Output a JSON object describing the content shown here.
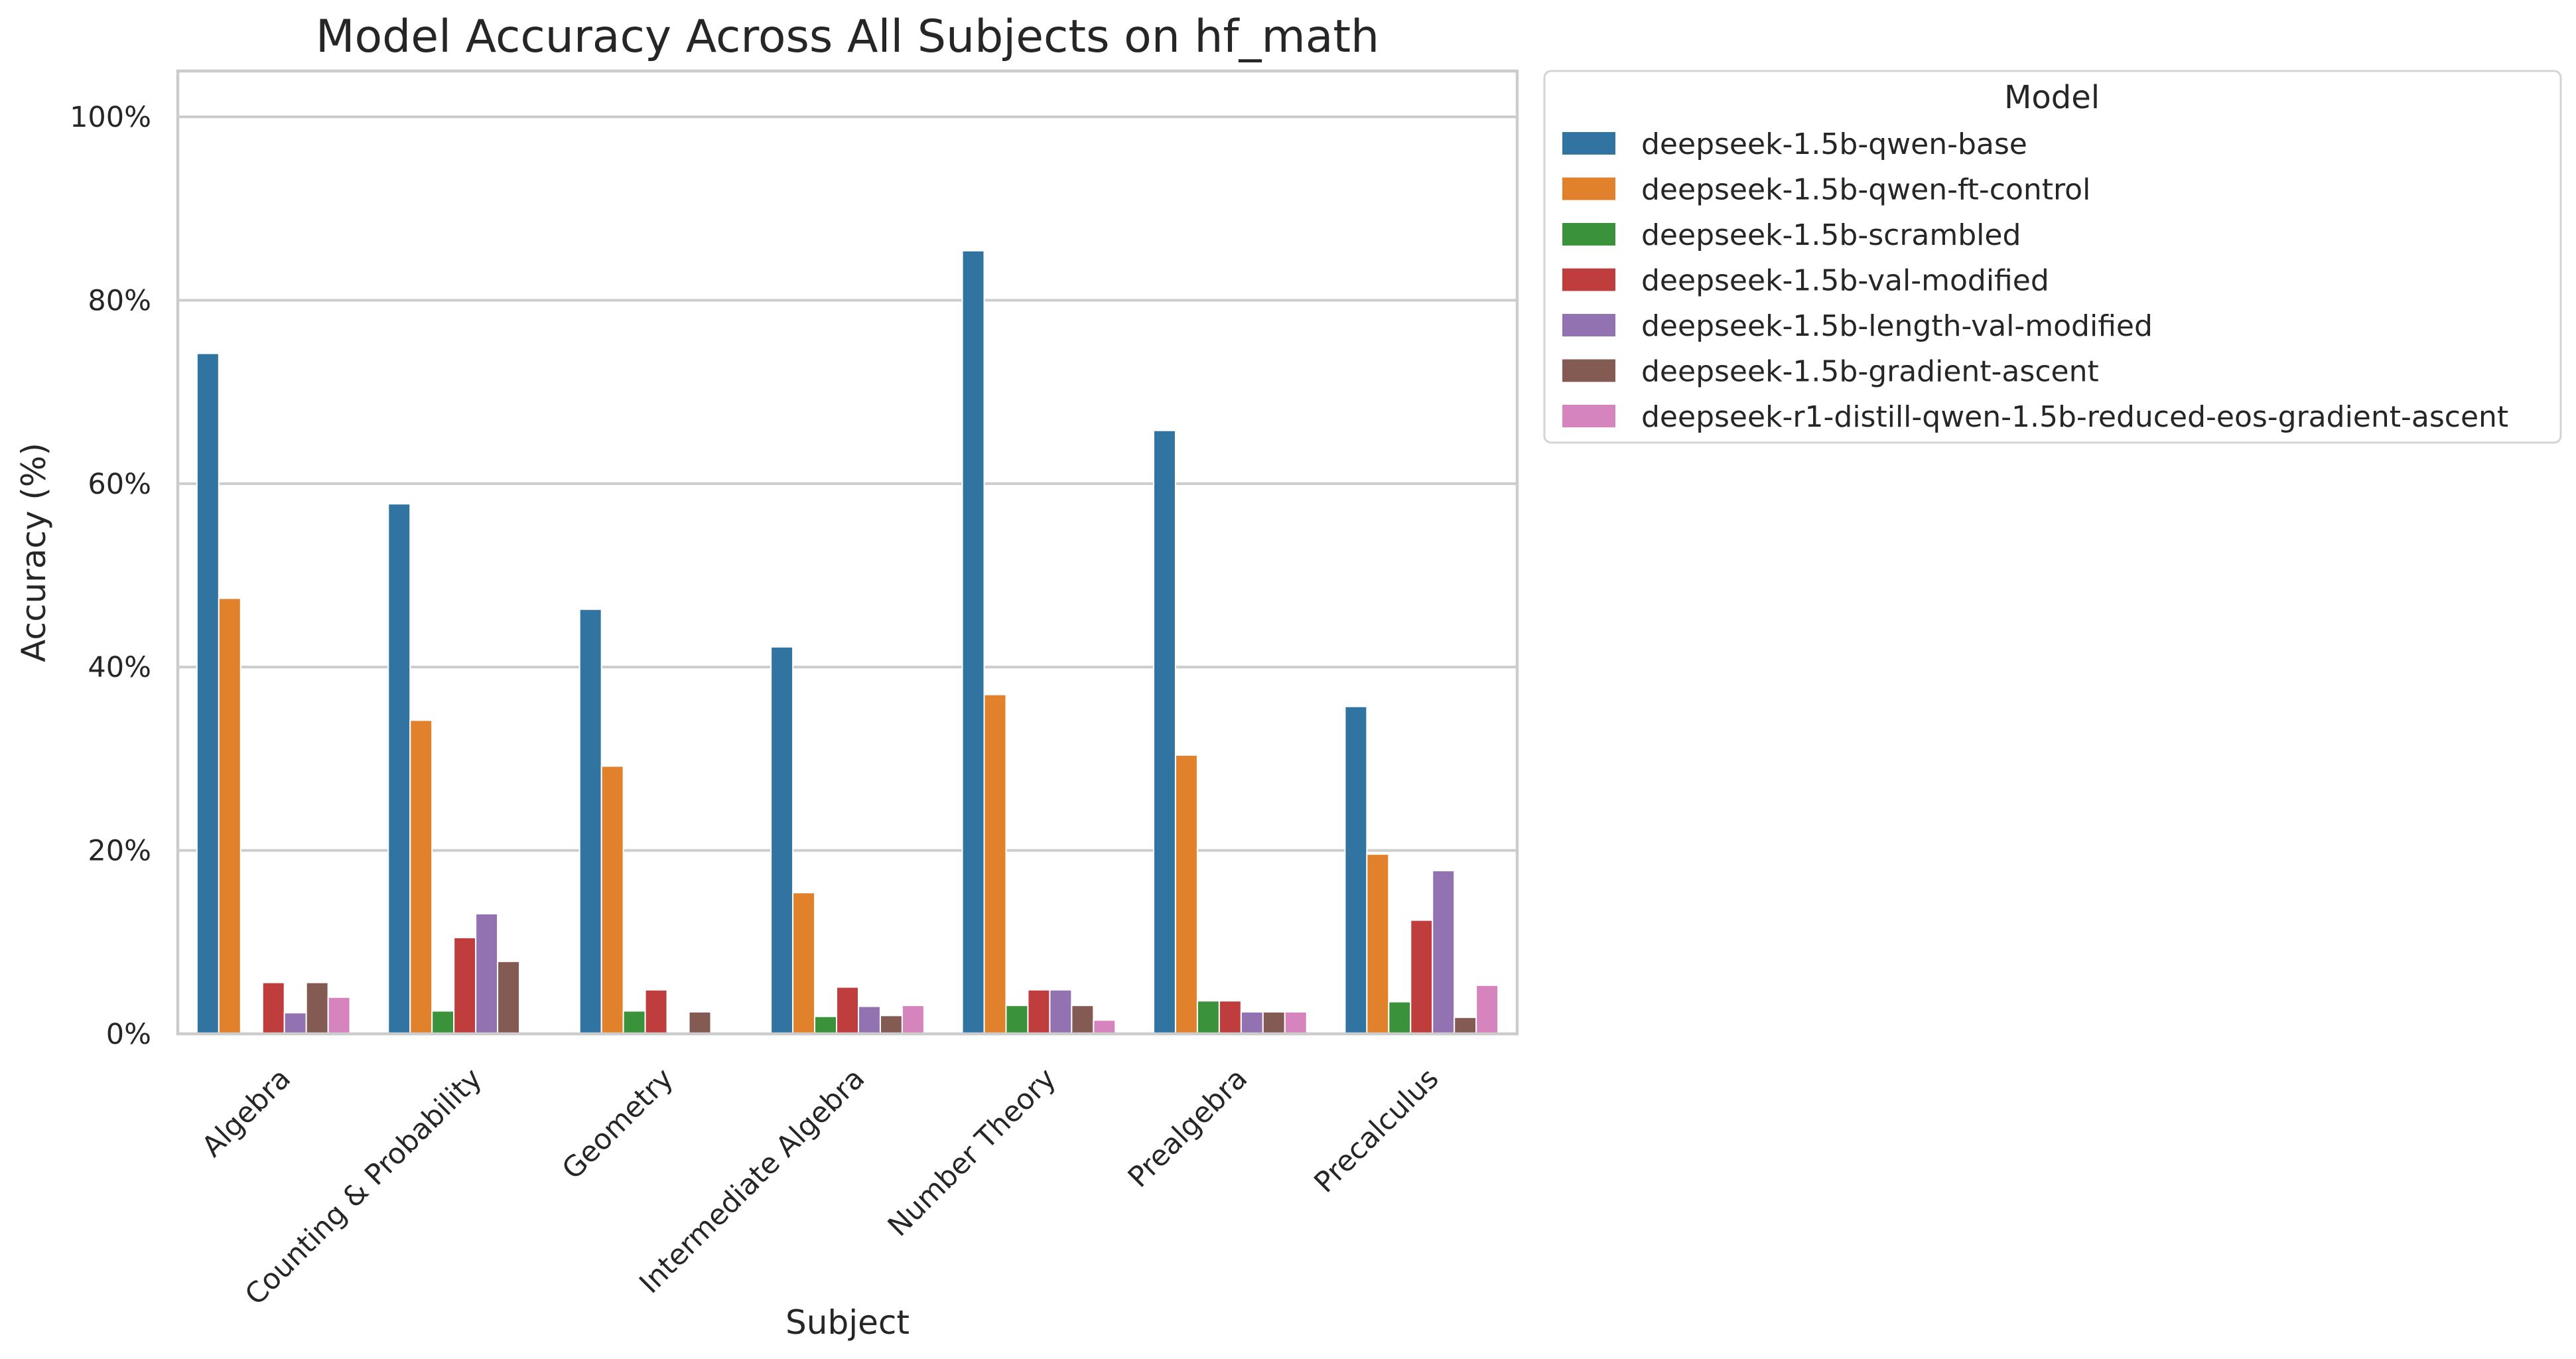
{
  "chart_data": {
    "type": "bar",
    "title": "Model Accuracy Across All Subjects on hf_math",
    "xlabel": "Subject",
    "ylabel": "Accuracy (%)",
    "ylim": [
      0,
      105
    ],
    "yticks": [
      0,
      20,
      40,
      60,
      80,
      100
    ],
    "ytick_labels": [
      "0%",
      "20%",
      "40%",
      "60%",
      "80%",
      "100%"
    ],
    "grid": true,
    "legend": {
      "title": "Model",
      "placement": "outside-upper-right"
    },
    "categories": [
      "Algebra",
      "Counting & Probability",
      "Geometry",
      "Intermediate Algebra",
      "Number Theory",
      "Prealgebra",
      "Precalculus"
    ],
    "series": [
      {
        "name": "deepseek-1.5b-qwen-base",
        "color": "#3274a1",
        "values": [
          74.2,
          57.8,
          46.3,
          42.2,
          85.4,
          65.8,
          35.7
        ]
      },
      {
        "name": "deepseek-1.5b-qwen-ft-control",
        "color": "#e1812c",
        "values": [
          47.5,
          34.2,
          29.2,
          15.4,
          37.0,
          30.4,
          19.6
        ]
      },
      {
        "name": "deepseek-1.5b-scrambled",
        "color": "#3a923a",
        "values": [
          0,
          2.5,
          2.5,
          1.9,
          3.1,
          3.6,
          3.5
        ]
      },
      {
        "name": "deepseek-1.5b-val-modified",
        "color": "#c03d3e",
        "values": [
          5.6,
          10.5,
          4.8,
          5.1,
          4.8,
          3.6,
          12.4
        ]
      },
      {
        "name": "deepseek-1.5b-length-val-modified",
        "color": "#9372b2",
        "values": [
          2.3,
          13.1,
          0,
          3.0,
          4.8,
          2.4,
          17.8
        ]
      },
      {
        "name": "deepseek-1.5b-gradient-ascent",
        "color": "#845b53",
        "values": [
          5.6,
          7.9,
          2.4,
          2.0,
          3.1,
          2.4,
          1.8
        ]
      },
      {
        "name": "deepseek-r1-distill-qwen-1.5b-reduced-eos-gradient-ascent",
        "color": "#d684bd",
        "values": [
          4.0,
          0,
          0,
          3.1,
          1.5,
          2.4,
          5.3
        ]
      }
    ]
  }
}
